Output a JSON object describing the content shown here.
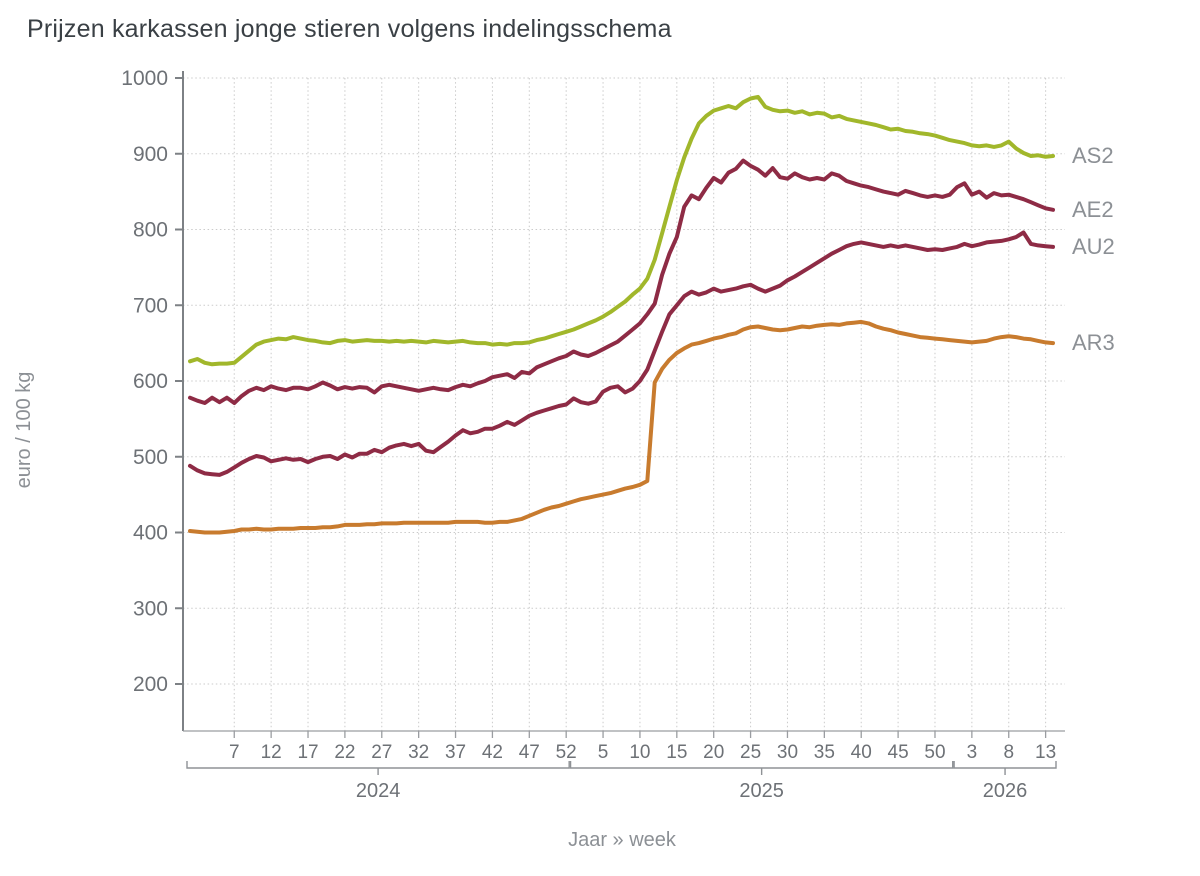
{
  "chart_data": {
    "type": "line",
    "title": "Prijzen karkassen jonge stieren volgens indelingsschema",
    "ylabel": "euro / 100 kg",
    "xlabel": "Jaar » week",
    "grid": true,
    "legend_position": "right-end-labels",
    "y_ticks": [
      200,
      300,
      400,
      500,
      600,
      700,
      800,
      900,
      1000
    ],
    "ylim": [
      140,
      1005
    ],
    "x_groups": [
      {
        "year": "2024",
        "weeks": 52,
        "ticks": [
          7,
          12,
          17,
          22,
          27,
          32,
          37,
          42,
          47,
          52
        ]
      },
      {
        "year": "2025",
        "weeks": 52,
        "ticks": [
          5,
          10,
          15,
          20,
          25,
          30,
          35,
          40,
          45,
          50
        ]
      },
      {
        "year": "2026",
        "weeks": 14,
        "ticks": [
          3,
          8,
          13
        ]
      }
    ],
    "series": [
      {
        "name": "AS2",
        "color": "#a1b72b",
        "values": [
          626,
          629,
          624,
          622,
          623,
          623,
          624,
          632,
          640,
          648,
          652,
          654,
          656,
          655,
          658,
          656,
          654,
          653,
          651,
          650,
          653,
          654,
          652,
          653,
          654,
          653,
          653,
          652,
          653,
          652,
          653,
          652,
          651,
          653,
          652,
          651,
          652,
          653,
          651,
          650,
          650,
          648,
          649,
          648,
          650,
          650,
          651,
          654,
          656,
          659,
          662,
          665,
          668,
          672,
          676,
          680,
          685,
          691,
          698,
          705,
          714,
          722,
          735,
          760,
          795,
          830,
          865,
          895,
          920,
          940,
          950,
          957,
          960,
          963,
          960,
          968,
          973,
          975,
          962,
          958,
          956,
          957,
          954,
          956,
          952,
          954,
          953,
          948,
          950,
          946,
          944,
          942,
          940,
          938,
          935,
          932,
          933,
          930,
          929,
          927,
          926,
          924,
          921,
          918,
          916,
          914,
          911,
          910,
          911,
          909,
          911,
          916,
          907,
          901,
          897,
          898,
          896,
          897
        ]
      },
      {
        "name": "AE2",
        "color": "#8e2b45",
        "values": [
          578,
          574,
          571,
          578,
          572,
          578,
          571,
          580,
          587,
          591,
          588,
          593,
          590,
          588,
          591,
          591,
          589,
          593,
          598,
          594,
          589,
          592,
          590,
          592,
          591,
          585,
          593,
          595,
          593,
          591,
          589,
          587,
          589,
          591,
          589,
          588,
          592,
          595,
          593,
          597,
          600,
          605,
          607,
          609,
          604,
          612,
          610,
          618,
          622,
          626,
          630,
          633,
          639,
          635,
          633,
          637,
          642,
          647,
          652,
          660,
          668,
          676,
          688,
          702,
          740,
          768,
          790,
          830,
          845,
          840,
          855,
          868,
          862,
          875,
          880,
          891,
          884,
          879,
          871,
          881,
          869,
          867,
          874,
          869,
          866,
          868,
          866,
          874,
          871,
          864,
          861,
          858,
          856,
          853,
          850,
          848,
          846,
          851,
          848,
          845,
          843,
          845,
          843,
          846,
          856,
          861,
          846,
          850,
          842,
          848,
          845,
          846,
          843,
          840,
          836,
          832,
          828,
          826
        ]
      },
      {
        "name": "AU2",
        "color": "#8e2b45",
        "values": [
          488,
          482,
          478,
          477,
          476,
          480,
          486,
          492,
          497,
          501,
          499,
          494,
          496,
          498,
          496,
          497,
          493,
          497,
          500,
          501,
          497,
          503,
          499,
          504,
          504,
          509,
          506,
          512,
          515,
          517,
          514,
          517,
          508,
          506,
          513,
          520,
          528,
          535,
          531,
          533,
          537,
          537,
          541,
          546,
          542,
          548,
          554,
          558,
          561,
          564,
          567,
          569,
          577,
          572,
          570,
          573,
          586,
          591,
          593,
          585,
          590,
          600,
          615,
          640,
          665,
          688,
          700,
          712,
          718,
          714,
          717,
          722,
          718,
          720,
          722,
          725,
          727,
          722,
          718,
          722,
          726,
          733,
          738,
          744,
          750,
          756,
          762,
          768,
          773,
          778,
          781,
          783,
          781,
          779,
          777,
          779,
          777,
          779,
          777,
          775,
          773,
          774,
          773,
          775,
          777,
          781,
          778,
          780,
          783,
          784,
          785,
          787,
          790,
          796,
          781,
          779,
          778,
          777
        ]
      },
      {
        "name": "AR3",
        "color": "#c87b2e",
        "values": [
          402,
          401,
          400,
          400,
          400,
          401,
          402,
          404,
          404,
          405,
          404,
          404,
          405,
          405,
          405,
          406,
          406,
          406,
          407,
          407,
          408,
          410,
          410,
          410,
          411,
          411,
          412,
          412,
          412,
          413,
          413,
          413,
          413,
          413,
          413,
          413,
          414,
          414,
          414,
          414,
          413,
          413,
          414,
          414,
          416,
          418,
          422,
          426,
          430,
          433,
          435,
          438,
          441,
          444,
          446,
          448,
          450,
          452,
          455,
          458,
          460,
          463,
          468,
          598,
          616,
          628,
          637,
          643,
          648,
          650,
          653,
          656,
          658,
          661,
          663,
          668,
          671,
          672,
          670,
          668,
          667,
          668,
          670,
          672,
          671,
          673,
          674,
          675,
          674,
          676,
          677,
          678,
          676,
          672,
          669,
          667,
          664,
          662,
          660,
          658,
          657,
          656,
          655,
          654,
          653,
          652,
          651,
          652,
          653,
          656,
          658,
          659,
          658,
          656,
          655,
          653,
          651,
          650
        ]
      }
    ]
  }
}
